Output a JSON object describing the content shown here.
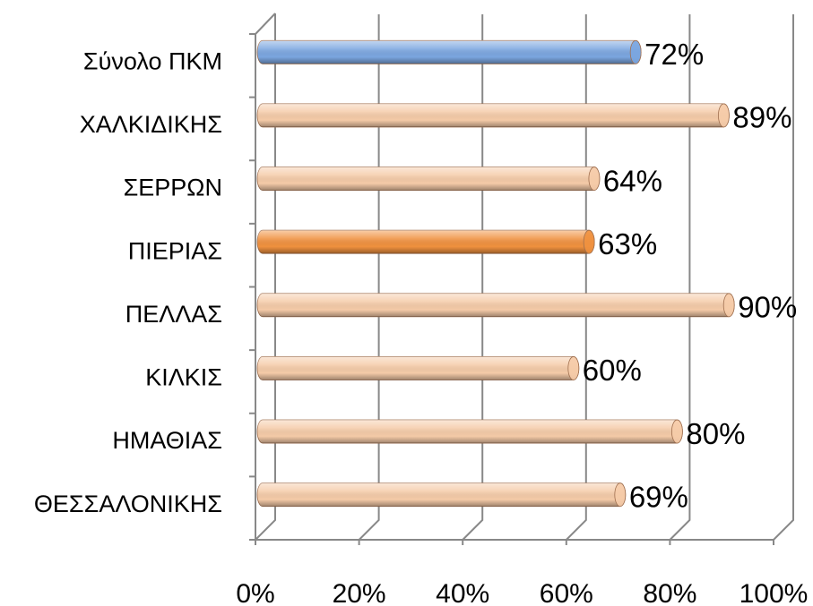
{
  "chart_data": {
    "type": "bar",
    "orientation": "horizontal",
    "categories": [
      "Σύνολο ΠΚΜ",
      "ΧΑΛΚΙΔΙΚΗΣ",
      "ΣΕΡΡΩΝ",
      "ΠΙΕΡΙΑΣ",
      "ΠΕΛΛΑΣ",
      "ΚΙΛΚΙΣ",
      "ΗΜΑΘΙΑΣ",
      "ΘΕΣΣΑΛΟΝΙΚΗΣ"
    ],
    "values": [
      72,
      89,
      64,
      63,
      90,
      60,
      80,
      69
    ],
    "value_labels": [
      "72%",
      "89%",
      "64%",
      "63%",
      "90%",
      "60%",
      "80%",
      "69%"
    ],
    "colors": [
      "#7ba6e0",
      "#f5cba8",
      "#f5cba8",
      "#f0913f",
      "#f5cba8",
      "#f5cba8",
      "#f5cba8",
      "#f5cba8"
    ],
    "xlim": [
      0,
      100
    ],
    "xticks": [
      {
        "value": 0,
        "label": "0%"
      },
      {
        "value": 20,
        "label": "20%"
      },
      {
        "value": 40,
        "label": "40%"
      },
      {
        "value": 60,
        "label": "60%"
      },
      {
        "value": 80,
        "label": "80%"
      },
      {
        "value": 100,
        "label": "100%"
      }
    ],
    "grid": true
  }
}
